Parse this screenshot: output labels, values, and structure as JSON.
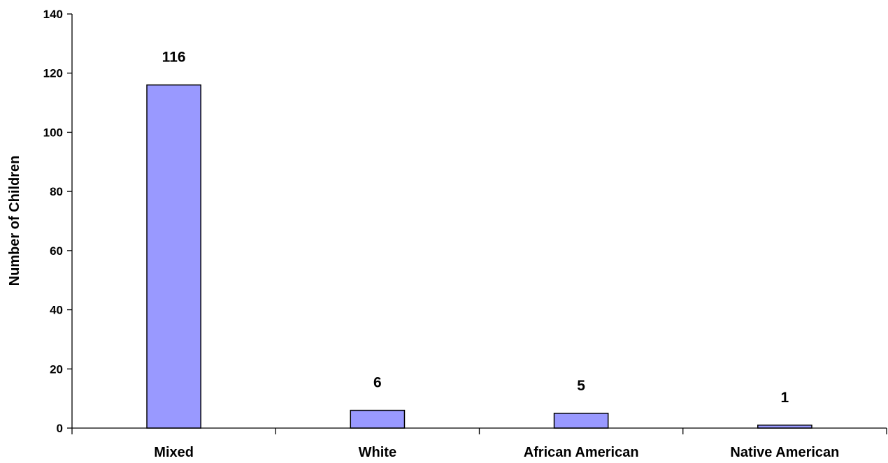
{
  "chart_data": {
    "type": "bar",
    "title": "",
    "xlabel": "",
    "ylabel": "Number of Children",
    "categories": [
      "Mixed",
      "White",
      "African American",
      "Native American"
    ],
    "series": [
      {
        "values": [
          116,
          6,
          5,
          1
        ],
        "color": "#9999ff"
      }
    ],
    "data_labels": [
      "116",
      "6",
      "5",
      "1"
    ],
    "ylim": [
      0,
      140
    ],
    "yticks": [
      0,
      20,
      40,
      60,
      80,
      100,
      120,
      140
    ],
    "grid": false,
    "legend": "none"
  }
}
